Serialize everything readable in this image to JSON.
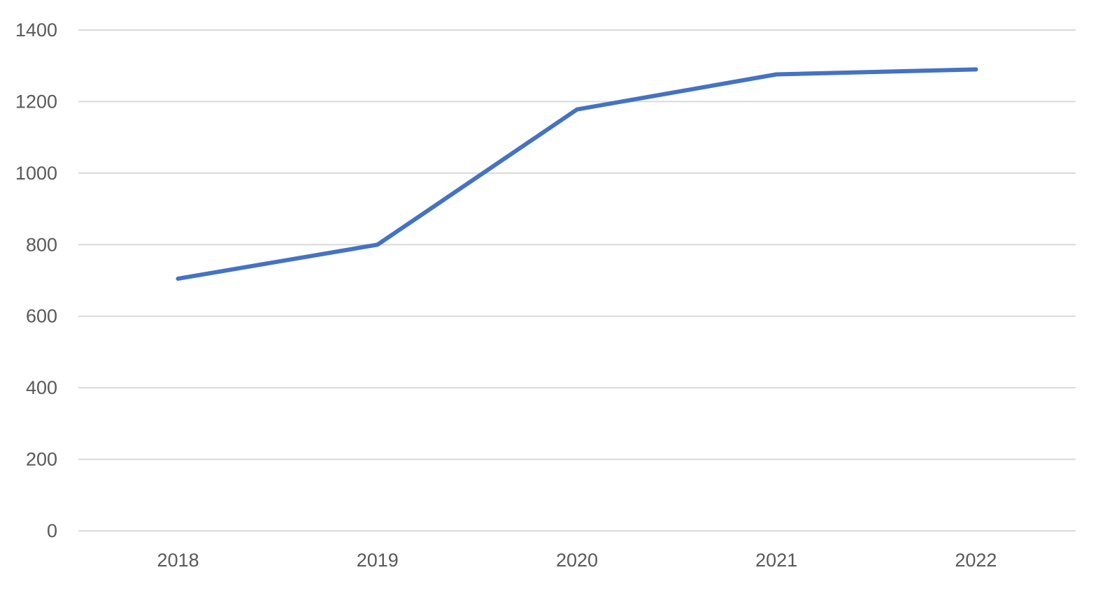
{
  "chart_data": {
    "type": "line",
    "title": "",
    "xlabel": "",
    "ylabel": "",
    "categories": [
      "2018",
      "2019",
      "2020",
      "2021",
      "2022"
    ],
    "series": [
      {
        "values": [
          705,
          800,
          1178,
          1276,
          1290
        ]
      }
    ],
    "ylim": [
      0,
      1400
    ],
    "y_ticks": [
      0,
      200,
      400,
      600,
      800,
      1000,
      1200,
      1400
    ],
    "grid": true,
    "legend": "none",
    "colors": {
      "series": "#4472c4",
      "grid": "#d9d9d9",
      "tick_text": "#595959"
    }
  }
}
